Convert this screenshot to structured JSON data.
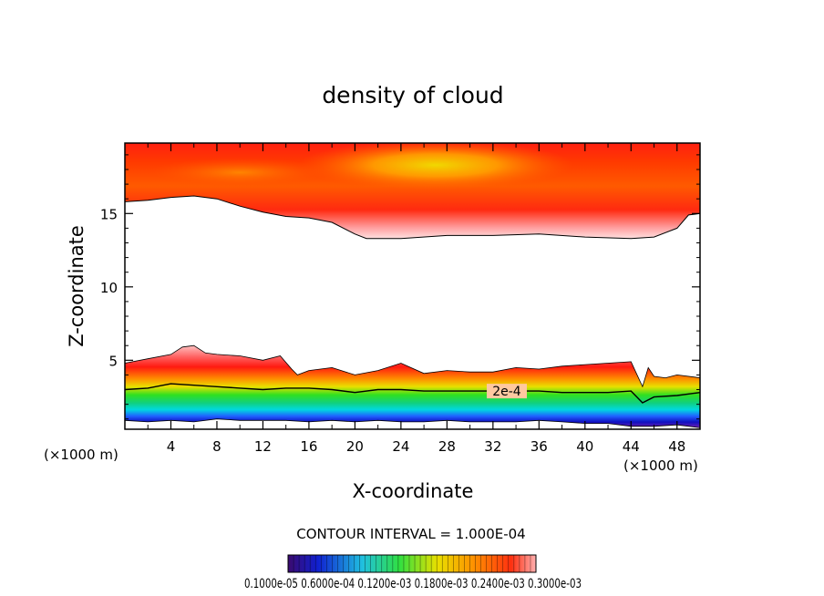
{
  "chart_data": {
    "type": "heatmap",
    "title": "density of cloud",
    "xlabel": "X-coordinate",
    "ylabel": "Z-coordinate",
    "x_unit": "(×1000 m)",
    "x_unit_lower": "(×1000 m)",
    "xlim": [
      0,
      50
    ],
    "ylim": [
      0.3,
      19.8
    ],
    "x_ticks": [
      "4",
      "8",
      "12",
      "16",
      "20",
      "24",
      "28",
      "32",
      "36",
      "40",
      "44",
      "48"
    ],
    "y_ticks": [
      "5",
      "10",
      "15"
    ],
    "contour_interval_text": "CONTOUR INTERVAL = 1.000E-04",
    "contour_label": "2e-4",
    "colorbar_labels_text": "0.1000e-05  0.6000e-04  0.1200e-03  0.1800e-03  0.2400e-03  0.3000e-03",
    "colorbar_range": [
      1e-06,
      0.0003
    ],
    "colors": {
      "low": "#3b0a6e",
      "blue": "#1030ff",
      "cyan": "#00e0e0",
      "green": "#20e020",
      "yellow": "#f0e000",
      "orange": "#ff8000",
      "red": "#ff1010",
      "pink": "#ffb0b0"
    },
    "upper_layer_base": [
      [
        0,
        15.8
      ],
      [
        2,
        15.9
      ],
      [
        4,
        16.1
      ],
      [
        6,
        16.2
      ],
      [
        8,
        16.0
      ],
      [
        10,
        15.5
      ],
      [
        12,
        15.1
      ],
      [
        14,
        14.8
      ],
      [
        16,
        14.7
      ],
      [
        18,
        14.4
      ],
      [
        20,
        13.6
      ],
      [
        21,
        13.3
      ],
      [
        24,
        13.3
      ],
      [
        28,
        13.5
      ],
      [
        32,
        13.5
      ],
      [
        36,
        13.6
      ],
      [
        40,
        13.4
      ],
      [
        44,
        13.3
      ],
      [
        46,
        13.4
      ],
      [
        48,
        14.0
      ],
      [
        49,
        14.9
      ],
      [
        50,
        15.0
      ]
    ],
    "lower_layer_top": [
      [
        0,
        4.8
      ],
      [
        2,
        5.1
      ],
      [
        4,
        5.4
      ],
      [
        5,
        5.9
      ],
      [
        6,
        6.0
      ],
      [
        7,
        5.5
      ],
      [
        8,
        5.4
      ],
      [
        10,
        5.3
      ],
      [
        12,
        5.0
      ],
      [
        13.5,
        5.3
      ],
      [
        14.5,
        4.4
      ],
      [
        15,
        4.0
      ],
      [
        16,
        4.3
      ],
      [
        18,
        4.5
      ],
      [
        20,
        4.0
      ],
      [
        22,
        4.3
      ],
      [
        24,
        4.8
      ],
      [
        26,
        4.1
      ],
      [
        28,
        4.3
      ],
      [
        30,
        4.2
      ],
      [
        32,
        4.2
      ],
      [
        34,
        4.5
      ],
      [
        36,
        4.4
      ],
      [
        38,
        4.6
      ],
      [
        40,
        4.7
      ],
      [
        42,
        4.8
      ],
      [
        44,
        4.9
      ],
      [
        45,
        3.2
      ],
      [
        45.5,
        4.5
      ],
      [
        46,
        3.9
      ],
      [
        47,
        3.8
      ],
      [
        48,
        4.0
      ],
      [
        50,
        3.8
      ]
    ],
    "contour_2e4": [
      [
        0,
        3.0
      ],
      [
        2,
        3.1
      ],
      [
        4,
        3.4
      ],
      [
        6,
        3.3
      ],
      [
        8,
        3.2
      ],
      [
        10,
        3.1
      ],
      [
        12,
        3.0
      ],
      [
        14,
        3.1
      ],
      [
        16,
        3.1
      ],
      [
        18,
        3.0
      ],
      [
        20,
        2.8
      ],
      [
        22,
        3.0
      ],
      [
        24,
        3.0
      ],
      [
        26,
        2.9
      ],
      [
        28,
        2.9
      ],
      [
        30,
        2.9
      ],
      [
        32,
        2.9
      ],
      [
        34,
        2.9
      ],
      [
        36,
        2.9
      ],
      [
        38,
        2.8
      ],
      [
        40,
        2.8
      ],
      [
        42,
        2.8
      ],
      [
        44,
        2.9
      ],
      [
        45,
        2.1
      ],
      [
        46,
        2.5
      ],
      [
        48,
        2.6
      ],
      [
        50,
        2.8
      ]
    ],
    "lower_layer_base": [
      [
        0,
        0.9
      ],
      [
        2,
        0.8
      ],
      [
        4,
        0.9
      ],
      [
        6,
        0.8
      ],
      [
        8,
        1.0
      ],
      [
        10,
        0.9
      ],
      [
        12,
        0.9
      ],
      [
        14,
        0.9
      ],
      [
        16,
        0.8
      ],
      [
        18,
        0.9
      ],
      [
        20,
        0.8
      ],
      [
        22,
        0.9
      ],
      [
        24,
        0.8
      ],
      [
        26,
        0.8
      ],
      [
        28,
        0.9
      ],
      [
        30,
        0.8
      ],
      [
        32,
        0.8
      ],
      [
        34,
        0.8
      ],
      [
        36,
        0.9
      ],
      [
        38,
        0.8
      ],
      [
        40,
        0.7
      ],
      [
        42,
        0.7
      ],
      [
        44,
        0.5
      ],
      [
        46,
        0.5
      ],
      [
        48,
        0.6
      ],
      [
        50,
        0.4
      ]
    ]
  }
}
